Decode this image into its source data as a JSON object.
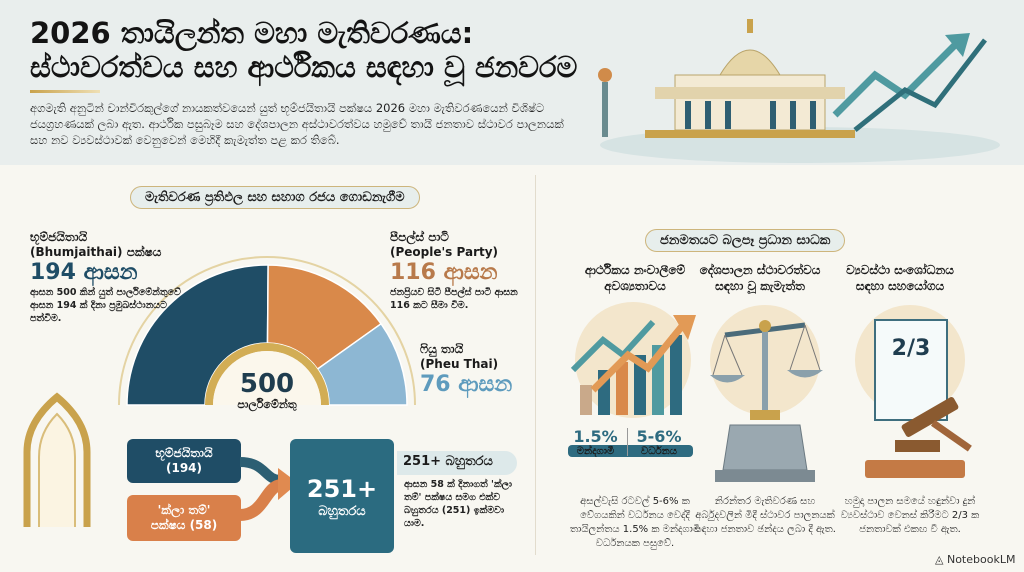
{
  "header": {
    "title_line1": "2026 තායිලන්ත මහා මැතිවරණය:",
    "title_line2": "ස්ථාවරත්වය සහ ආර්ථිකය සඳහා වූ ජනවරම",
    "description": "අගමැති අනුටින් චාන්විරකුල්ගේ නායකත්වයෙන් යුත් භූම්ජයිතායි පක්ෂය 2026 මහා මැතිවරණයෙන් විශිෂ්ට ජයග්‍රහණයක් ලබා ඇත. ආර්ථික පසුබෑම සහ දේශපාලන අස්ථාවරත්වය හමුවේ තායි ජනතාව ස්ථාවර පාලනයක් සහ නව ව්‍යවස්ථාවක් වෙනුවෙන් මෙහිදී කැමැත්ත පළ කර තිබේ."
  },
  "results": {
    "banner": "මැතිවරණ ප්‍රතිඵල සහ සහාග රජය ගොඩනැගීම",
    "total_seats": "500",
    "total_label": "පාර්ලිමේන්තු",
    "parties": [
      {
        "name": "භූම්ජයිතායි",
        "name_en": "(Bhumjaithai) පක්ෂය",
        "seats": 194,
        "seats_label": "194 ආසන",
        "note": "ආසන 500 කින් යුත් පාර්ලිමේන්තුවේ ආසන 194 ක් දිනා ප්‍රමුඛස්ථානයට පත්වීම.",
        "color": "#1f4d66"
      },
      {
        "name": "පීපල්ස් පාටි",
        "name_en": "(People's Party)",
        "seats": 116,
        "seats_label": "116 ආසන",
        "note": "ජනප්‍රියව සිටි පීපල්ස් පාටි ආසන 116 කට සීමා වීම.",
        "color": "#d9894a"
      },
      {
        "name": "ෆියු තායි",
        "name_en": "(Pheu Thai)",
        "seats": 76,
        "seats_label": "76 ආසන",
        "note": "",
        "color": "#8db7d3"
      }
    ]
  },
  "coalition": {
    "party1": "භූම්ජයිතායි",
    "party1_seats": "(194)",
    "party2": "'ක්ලා තම්'",
    "party2_seats": "පක්ෂය (58)",
    "total": "251+",
    "total_label": "බහුතරය",
    "side_title": "251+ බහුතරය",
    "side_note": "ආසන 58 ක් දිනාගත් 'ක්ලා තම්' පක්ෂය සමග එක්ව බහුතරය (251) ඉක්මවා යාම."
  },
  "factors": {
    "banner": "ජනමතයට බලපෑ ප්‍රධාන සාධක",
    "items": [
      {
        "title": "ආර්ථිකය නංවාලීමේ අවශ්‍යතාවය",
        "stat1": "1.5%",
        "stat1_label": "මන්දගාමී",
        "stat2": "5-6%",
        "stat2_label": "වර්ධනය",
        "desc": "අසල්වැසි රටවල් 5-6% ක වේගයකින් වර්ධනය වෙද්දී තායිලන්තය 1.5% ක මන්දගාමී වර්ධනයක පසුවේ."
      },
      {
        "title": "දේශපාලන ස්ථාවරත්වය සඳහා වූ කැමැත්ත",
        "desc": "නිරන්තර මැතිවරණ සහ අර්බුදවලින් මිදී ස්ථාවර පාලනයක් සඳහා ජනතාව ඡන්දය ලබා දී ඇත."
      },
      {
        "title": "ව්‍යවස්ථා සංශෝධනය සඳහා සහයෝගය",
        "fraction": "2/3",
        "desc": "හමුදා පාලන සමයේ හඳුන්වා දුන් ව්‍යවස්ථාව වෙනස් කිරීමට 2/3 ක ජනතාවක් එකඟ වී ඇත."
      }
    ]
  },
  "footer": {
    "brand": "NotebookLM"
  }
}
